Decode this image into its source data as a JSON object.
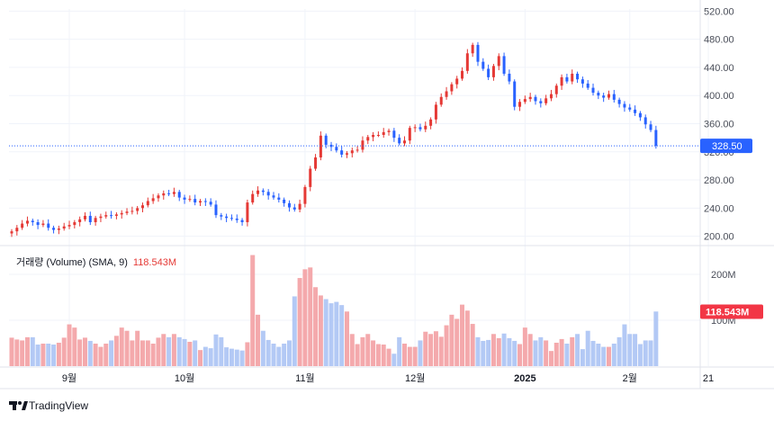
{
  "chart_data": {
    "type": "candlestick",
    "price_axis": {
      "ticks": [
        "520.00",
        "480.00",
        "440.00",
        "400.00",
        "360.00",
        "320.00",
        "280.00",
        "240.00",
        "200.00"
      ],
      "ylim": [
        188,
        523
      ]
    },
    "volume_axis": {
      "ticks": [
        "200M",
        "100M"
      ],
      "ylim": [
        0,
        245
      ]
    },
    "time_axis": {
      "labels": [
        {
          "text": "9월",
          "index": 11,
          "bold": false
        },
        {
          "text": "10월",
          "index": 33,
          "bold": false
        },
        {
          "text": "11월",
          "index": 56,
          "bold": false
        },
        {
          "text": "12월",
          "index": 77,
          "bold": false
        },
        {
          "text": "2025",
          "index": 98,
          "bold": true
        },
        {
          "text": "2월",
          "index": 118,
          "bold": false
        },
        {
          "text": "21",
          "index": 133,
          "bold": false
        }
      ]
    },
    "last_price": {
      "text": "328.50",
      "value": 328.5,
      "color": "#2962ff"
    },
    "volume_indicator": {
      "label": "거래량 (Volume) (SMA, 9)",
      "value_text": "118.543M",
      "value": 118.543,
      "color": "#f23645"
    },
    "colors": {
      "up": "#e53935",
      "down": "#2962ff",
      "vol_up": "#f4a9ac",
      "vol_down": "#b3c9f5"
    },
    "close": [
      207,
      212,
      218,
      222,
      220,
      216,
      218,
      212,
      209,
      211,
      214,
      216,
      220,
      224,
      229,
      220,
      226,
      228,
      230,
      229,
      231,
      233,
      235,
      236,
      240,
      244,
      250,
      254,
      258,
      261,
      260,
      263,
      255,
      252,
      253,
      248,
      250,
      249,
      245,
      230,
      228,
      226,
      225,
      223,
      220,
      248,
      260,
      265,
      263,
      258,
      255,
      252,
      247,
      241,
      238,
      246,
      270,
      296,
      312,
      343,
      330,
      327,
      322,
      316,
      318,
      322,
      323,
      336,
      341,
      344,
      344,
      348,
      350,
      340,
      332,
      336,
      354,
      355,
      352,
      357,
      366,
      387,
      398,
      406,
      416,
      424,
      435,
      460,
      472,
      448,
      438,
      426,
      442,
      456,
      431,
      420,
      384,
      391,
      395,
      398,
      392,
      389,
      396,
      402,
      414,
      426,
      420,
      431,
      423,
      417,
      411,
      404,
      400,
      397,
      402,
      394,
      388,
      383,
      380,
      375,
      369,
      359,
      351,
      328.5
    ],
    "volume": [
      62,
      58,
      56,
      63,
      63,
      47,
      49,
      49,
      47,
      51,
      62,
      91,
      84,
      58,
      62,
      55,
      49,
      42,
      49,
      56,
      66,
      84,
      77,
      56,
      77,
      56,
      56,
      49,
      62,
      70,
      63,
      70,
      63,
      59,
      53,
      56,
      35,
      42,
      39,
      69,
      63,
      41,
      38,
      36,
      34,
      52,
      242,
      112,
      77,
      57,
      49,
      42,
      49,
      56,
      152,
      192,
      211,
      215,
      172,
      154,
      146,
      137,
      140,
      133,
      119,
      70,
      48,
      63,
      70,
      56,
      48,
      47,
      38,
      27,
      63,
      49,
      42,
      42,
      56,
      75,
      70,
      76,
      64,
      89,
      112,
      103,
      134,
      121,
      92,
      63,
      55,
      57,
      70,
      61,
      71,
      61,
      55,
      48,
      84,
      70,
      56,
      63,
      56,
      33,
      51,
      59,
      49,
      63,
      70,
      37,
      77,
      55,
      49,
      42,
      42,
      49,
      63,
      91,
      70,
      70,
      48,
      56,
      56,
      119
    ],
    "series": [
      {
        "name": "거래량 (Volume) (SMA, 9)",
        "values": "volume"
      }
    ]
  }
}
